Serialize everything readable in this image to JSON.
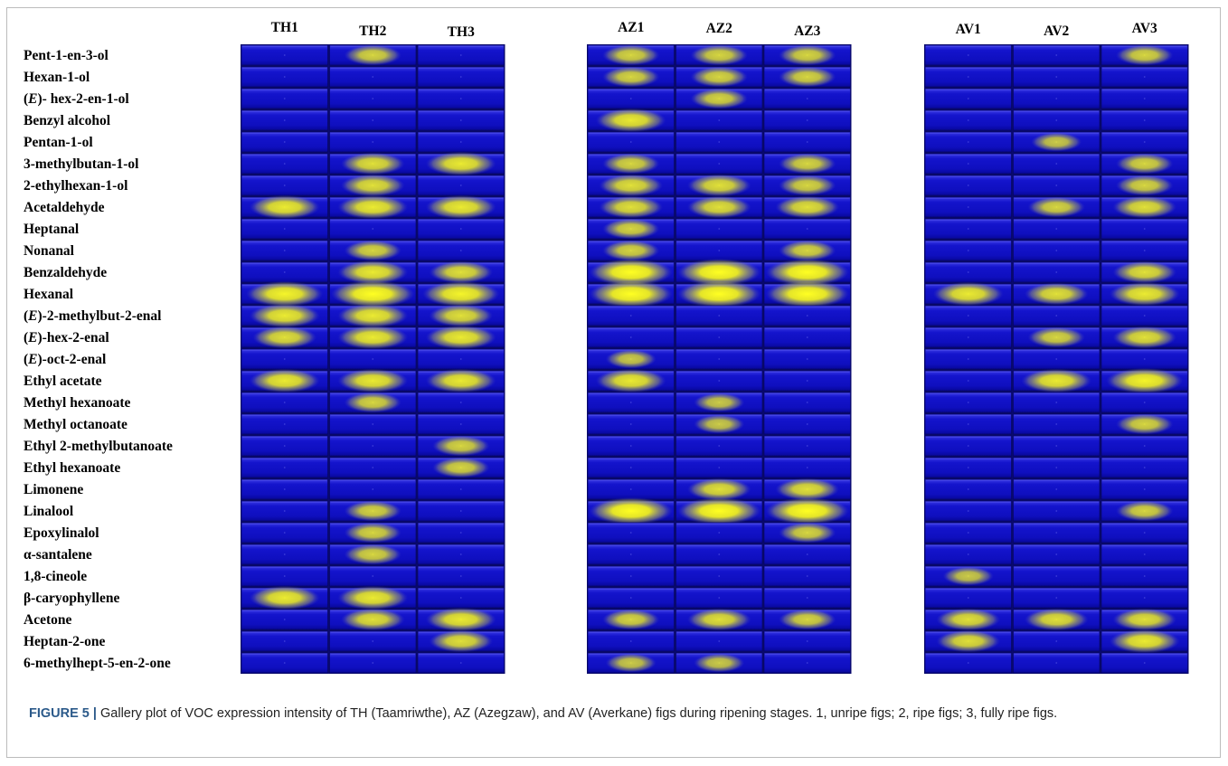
{
  "figure": {
    "label": "FIGURE 5 |",
    "caption": "Gallery plot of VOC expression intensity of TH (Taamriwthe), AZ (Azegzaw), and AV (Averkane) figs during ripening stages. 1, unripe figs; 2, ripe figs; 3, fully ripe figs."
  },
  "colors": {
    "cell_low": "#1010c8",
    "cell_mid": "#2a2ad8",
    "cell_high": "#f5f516",
    "separator": "#0a0a6e"
  },
  "chart_data": {
    "type": "heatmap",
    "title": "",
    "xlabel": "",
    "ylabel": "",
    "groups": [
      {
        "name": "TH",
        "columns": [
          "TH1",
          "TH2",
          "TH3"
        ]
      },
      {
        "name": "AZ",
        "columns": [
          "AZ1",
          "AZ2",
          "AZ3"
        ]
      },
      {
        "name": "AV",
        "columns": [
          "AV1",
          "AV2",
          "AV3"
        ]
      }
    ],
    "columns": [
      "TH1",
      "TH2",
      "TH3",
      "AZ1",
      "AZ2",
      "AZ3",
      "AV1",
      "AV2",
      "AV3"
    ],
    "rows": [
      "Pent-1-en-3-ol",
      "Hexan-1-ol",
      "(E)- hex-2-en-1-ol",
      "Benzyl alcohol",
      "Pentan-1-ol",
      "3-methylbutan-1-ol",
      "2-ethylhexan-1-ol",
      "Acetaldehyde",
      "Heptanal",
      "Nonanal",
      "Benzaldehyde",
      "Hexanal",
      "(E)-2-methylbut-2-enal",
      "(E)-hex-2-enal",
      "(E)-oct-2-enal",
      "Ethyl acetate",
      "Methyl hexanoate",
      "Methyl octanoate",
      "Ethyl 2-methylbutanoate",
      "Ethyl hexanoate",
      "Limonene",
      "Linalool",
      "Epoxylinalol",
      "α-santalene",
      "1,8-cineole",
      "β-caryophyllene",
      "Acetone",
      "Heptan-2-one",
      "6-methylhept-5-en-2-one"
    ],
    "values": [
      [
        0.0,
        0.6,
        0.0,
        0.6,
        0.6,
        0.6,
        0.0,
        0.0,
        0.6
      ],
      [
        0.0,
        0.0,
        0.0,
        0.6,
        0.6,
        0.6,
        0.0,
        0.0,
        0.0
      ],
      [
        0.0,
        0.0,
        0.0,
        0.0,
        0.6,
        0.0,
        0.0,
        0.0,
        0.0
      ],
      [
        0.0,
        0.0,
        0.0,
        0.8,
        0.0,
        0.0,
        0.0,
        0.0,
        0.0
      ],
      [
        0.0,
        0.0,
        0.0,
        0.0,
        0.0,
        0.0,
        0.0,
        0.5,
        0.0
      ],
      [
        0.0,
        0.7,
        0.8,
        0.6,
        0.0,
        0.6,
        0.0,
        0.0,
        0.6
      ],
      [
        0.0,
        0.7,
        0.0,
        0.7,
        0.7,
        0.6,
        0.0,
        0.0,
        0.6
      ],
      [
        0.8,
        0.8,
        0.8,
        0.7,
        0.7,
        0.7,
        0.0,
        0.6,
        0.7
      ],
      [
        0.0,
        0.0,
        0.0,
        0.6,
        0.0,
        0.0,
        0.0,
        0.0,
        0.0
      ],
      [
        0.0,
        0.6,
        0.0,
        0.6,
        0.0,
        0.6,
        0.0,
        0.0,
        0.0
      ],
      [
        0.0,
        0.8,
        0.7,
        1.0,
        1.0,
        1.0,
        0.0,
        0.0,
        0.7
      ],
      [
        0.9,
        1.0,
        0.9,
        1.0,
        1.0,
        1.0,
        0.8,
        0.7,
        0.8
      ],
      [
        0.8,
        0.8,
        0.7,
        0.0,
        0.0,
        0.0,
        0.0,
        0.0,
        0.0
      ],
      [
        0.7,
        0.8,
        0.8,
        0.0,
        0.0,
        0.0,
        0.0,
        0.6,
        0.7
      ],
      [
        0.0,
        0.0,
        0.0,
        0.5,
        0.0,
        0.0,
        0.0,
        0.0,
        0.0
      ],
      [
        0.8,
        0.8,
        0.8,
        0.8,
        0.0,
        0.0,
        0.0,
        0.8,
        0.9
      ],
      [
        0.0,
        0.6,
        0.0,
        0.0,
        0.5,
        0.0,
        0.0,
        0.0,
        0.0
      ],
      [
        0.0,
        0.0,
        0.0,
        0.0,
        0.5,
        0.0,
        0.0,
        0.0,
        0.6
      ],
      [
        0.0,
        0.0,
        0.6,
        0.0,
        0.0,
        0.0,
        0.0,
        0.0,
        0.0
      ],
      [
        0.0,
        0.0,
        0.6,
        0.0,
        0.0,
        0.0,
        0.0,
        0.0,
        0.0
      ],
      [
        0.0,
        0.0,
        0.0,
        0.0,
        0.7,
        0.7,
        0.0,
        0.0,
        0.0
      ],
      [
        0.0,
        0.6,
        0.0,
        1.0,
        1.0,
        1.0,
        0.0,
        0.0,
        0.6
      ],
      [
        0.0,
        0.6,
        0.0,
        0.0,
        0.0,
        0.6,
        0.0,
        0.0,
        0.0
      ],
      [
        0.0,
        0.6,
        0.0,
        0.0,
        0.0,
        0.0,
        0.0,
        0.0,
        0.0
      ],
      [
        0.0,
        0.0,
        0.0,
        0.0,
        0.0,
        0.0,
        0.5,
        0.0,
        0.0
      ],
      [
        0.8,
        0.8,
        0.0,
        0.0,
        0.0,
        0.0,
        0.0,
        0.0,
        0.0
      ],
      [
        0.0,
        0.7,
        0.8,
        0.6,
        0.7,
        0.6,
        0.7,
        0.7,
        0.7
      ],
      [
        0.0,
        0.0,
        0.7,
        0.0,
        0.0,
        0.0,
        0.7,
        0.0,
        0.8
      ],
      [
        0.0,
        0.0,
        0.0,
        0.5,
        0.5,
        0.0,
        0.0,
        0.0,
        0.0
      ]
    ]
  }
}
